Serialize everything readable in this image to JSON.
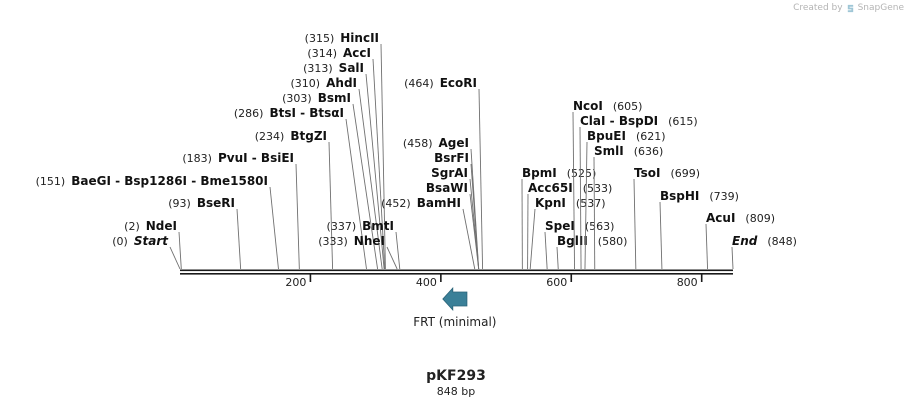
{
  "credit": {
    "created_by": "Created by",
    "app": "SnapGene"
  },
  "plasmid": {
    "name": "pKF293",
    "length_label": "848 bp",
    "length": 848
  },
  "sites": [
    {
      "name": "Start",
      "pos": 0,
      "pos_label": "(0)",
      "italic": true
    },
    {
      "name": "NdeI",
      "pos": 2,
      "pos_label": "(2)"
    },
    {
      "name": "BseRI",
      "pos": 93,
      "pos_label": "(93)"
    },
    {
      "name": "BaeGI  -  Bsp1286I  -  Bme1580I",
      "pos": 151,
      "pos_label": "(151)"
    },
    {
      "name": "PvuI  -  BsiEI",
      "pos": 183,
      "pos_label": "(183)"
    },
    {
      "name": "BtgZI",
      "pos": 234,
      "pos_label": "(234)"
    },
    {
      "name": "BtsI  -  BtsαI",
      "pos": 286,
      "pos_label": "(286)"
    },
    {
      "name": "BsmI",
      "pos": 303,
      "pos_label": "(303)"
    },
    {
      "name": "AhdI",
      "pos": 310,
      "pos_label": "(310)"
    },
    {
      "name": "SalI",
      "pos": 313,
      "pos_label": "(313)"
    },
    {
      "name": "AccI",
      "pos": 314,
      "pos_label": "(314)"
    },
    {
      "name": "HincII",
      "pos": 315,
      "pos_label": "(315)"
    },
    {
      "name": "NheI",
      "pos": 333,
      "pos_label": "(333)"
    },
    {
      "name": "BmtI",
      "pos": 337,
      "pos_label": "(337)"
    },
    {
      "name": "BamHI",
      "pos": 452,
      "pos_label": "(452)"
    },
    {
      "name": "BsaWI",
      "pos": 458,
      "pos_label": ""
    },
    {
      "name": "SgrAI",
      "pos": 458,
      "pos_label": ""
    },
    {
      "name": "BsrFI",
      "pos": 458,
      "pos_label": ""
    },
    {
      "name": "AgeI",
      "pos": 458,
      "pos_label": "(458)"
    },
    {
      "name": "EcoRI",
      "pos": 464,
      "pos_label": "(464)"
    },
    {
      "name": "BpmI",
      "pos": 525,
      "pos_label": "(525)"
    },
    {
      "name": "Acc65I",
      "pos": 533,
      "pos_label": "(533)"
    },
    {
      "name": "KpnI",
      "pos": 537,
      "pos_label": "(537)"
    },
    {
      "name": "SpeI",
      "pos": 563,
      "pos_label": "(563)"
    },
    {
      "name": "BglII",
      "pos": 580,
      "pos_label": "(580)"
    },
    {
      "name": "NcoI",
      "pos": 605,
      "pos_label": "(605)"
    },
    {
      "name": "ClaI  -  BspDI",
      "pos": 615,
      "pos_label": "(615)"
    },
    {
      "name": "BpuEI",
      "pos": 621,
      "pos_label": "(621)"
    },
    {
      "name": "SmlI",
      "pos": 636,
      "pos_label": "(636)"
    },
    {
      "name": "TsoI",
      "pos": 699,
      "pos_label": "(699)"
    },
    {
      "name": "BspHI",
      "pos": 739,
      "pos_label": "(739)"
    },
    {
      "name": "AcuI",
      "pos": 809,
      "pos_label": "(809)"
    },
    {
      "name": "End",
      "pos": 848,
      "pos_label": "(848)",
      "italic": true
    }
  ],
  "ticks": [
    {
      "pos": 200,
      "label": "200"
    },
    {
      "pos": 400,
      "label": "400"
    },
    {
      "pos": 600,
      "label": "600"
    },
    {
      "pos": 800,
      "label": "800"
    }
  ],
  "features": [
    {
      "name": "FRT (minimal)",
      "start": 403,
      "end": 440,
      "direction": "reverse",
      "color": "#3a8098"
    }
  ],
  "colors": {
    "backbone": "#1a1a1a",
    "text": "#111111",
    "pos_text": "#222222",
    "leader": "#707070"
  }
}
